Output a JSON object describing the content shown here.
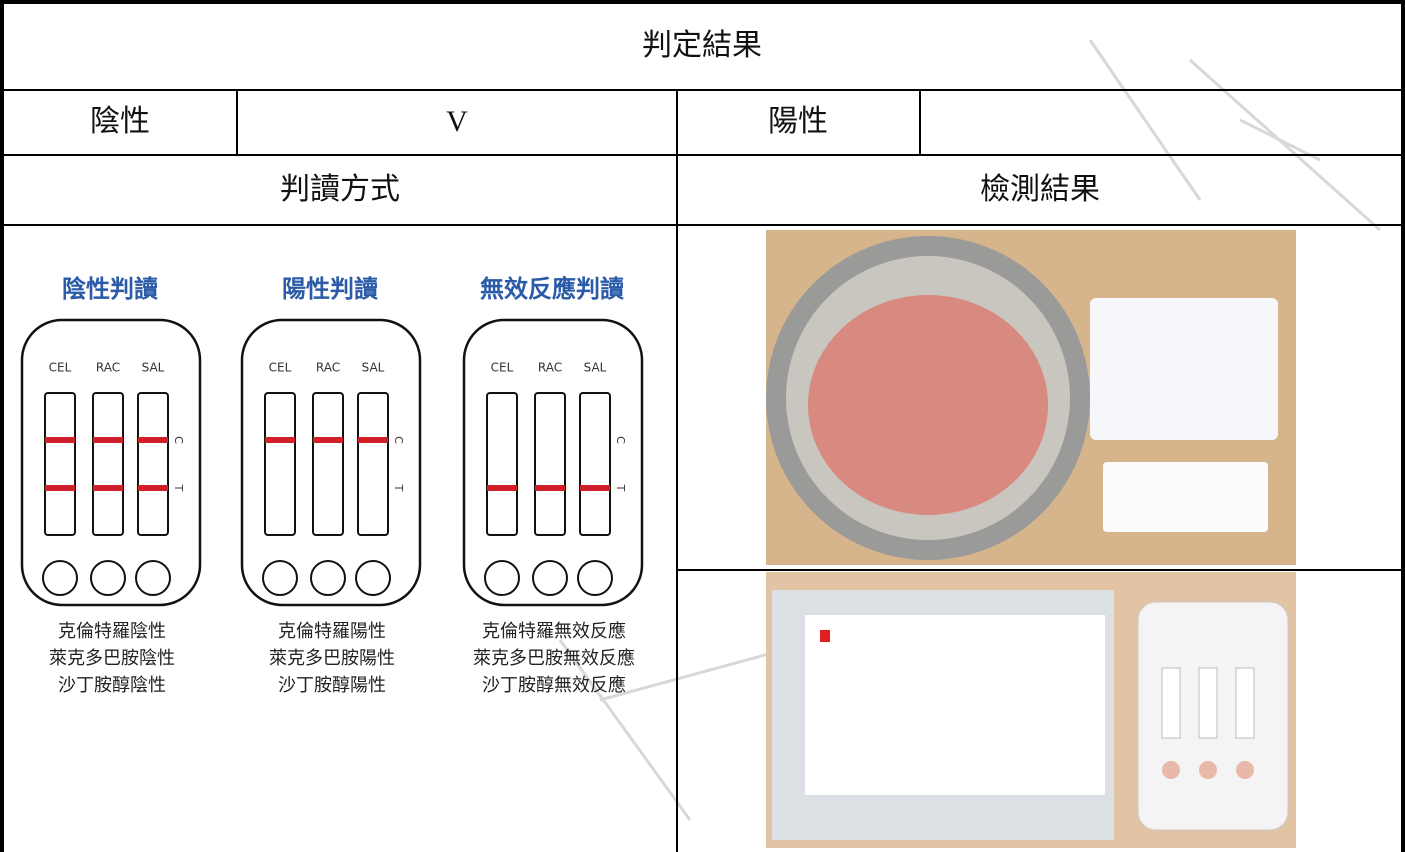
{
  "title": "判定結果",
  "result_row": {
    "negative_label": "陰性",
    "negative_mark": "V",
    "positive_label": "陽性"
  },
  "method_header": "判讀方式",
  "result_header": "檢測結果",
  "diagram": {
    "panels": [
      {
        "title": "陰性判讀",
        "strip_labels": [
          "CEL",
          "RAC",
          "SAL"
        ],
        "line_labels": [
          "C",
          "T"
        ],
        "shown_lines": [
          "C",
          "T"
        ],
        "captions": [
          "克倫特羅陰性",
          "萊克多巴胺陰性",
          "沙丁胺醇陰性"
        ]
      },
      {
        "title": "陽性判讀",
        "strip_labels": [
          "CEL",
          "RAC",
          "SAL"
        ],
        "line_labels": [
          "C",
          "T"
        ],
        "shown_lines": [
          "C"
        ],
        "captions": [
          "克倫特羅陽性",
          "萊克多巴胺陽性",
          "沙丁胺醇陽性"
        ]
      },
      {
        "title": "無效反應判讀",
        "strip_labels": [
          "CEL",
          "RAC",
          "SAL"
        ],
        "line_labels": [
          "C",
          "T"
        ],
        "shown_lines": [
          "T"
        ],
        "captions": [
          "克倫特羅無效反應",
          "萊克多巴胺無效反應",
          "沙丁胺醇無效反應"
        ]
      }
    ]
  }
}
